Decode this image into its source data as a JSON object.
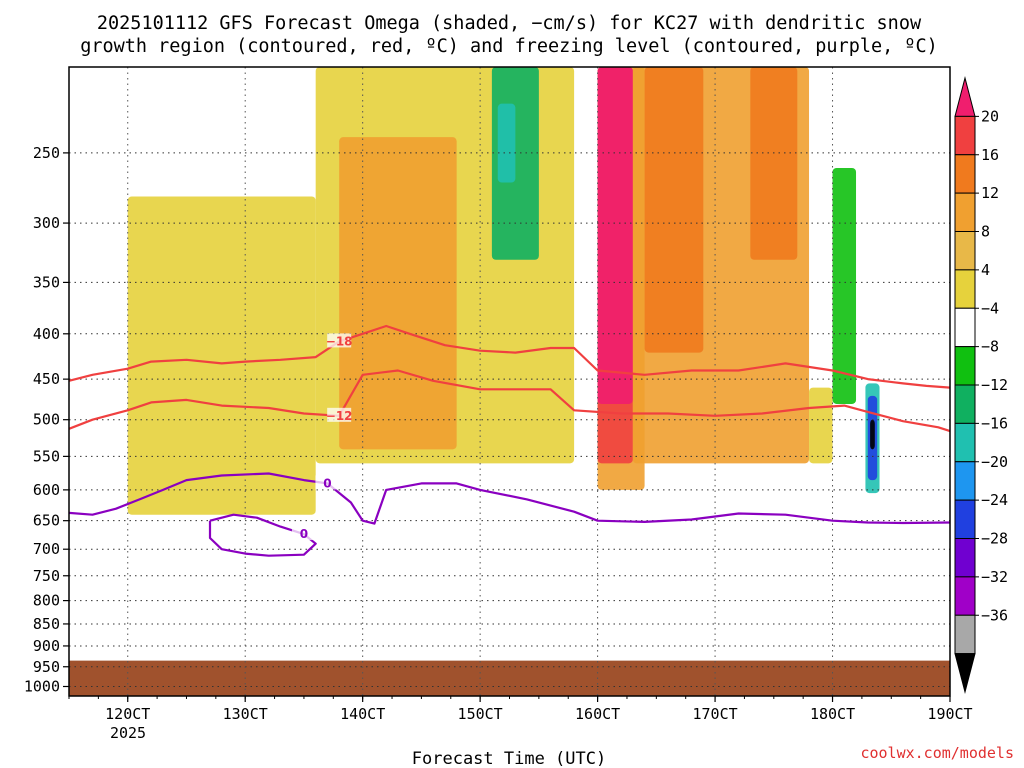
{
  "chart_data": {
    "type": "heatmap",
    "title": [
      "2025101112 GFS Forecast Omega (shaded, −cm/s) for KC27 with dendritic snow",
      "growth region (contoured, red, ºC) and freezing level (contoured, purple, ºC)"
    ],
    "xlabel": "Forecast Time (UTC)",
    "ylabel": "",
    "x_ticks": [
      "120CT",
      "130CT",
      "140CT",
      "150CT",
      "160CT",
      "170CT",
      "180CT",
      "190CT"
    ],
    "x_sub_label": "2025",
    "y_ticks": [
      "250",
      "300",
      "350",
      "400",
      "450",
      "500",
      "550",
      "600",
      "650",
      "700",
      "750",
      "800",
      "850",
      "900",
      "950",
      "1000"
    ],
    "y_tick_values": [
      250,
      300,
      350,
      400,
      450,
      500,
      550,
      600,
      650,
      700,
      750,
      800,
      850,
      900,
      950,
      1000
    ],
    "ylim_hpa": [
      200,
      1025
    ],
    "xlim_days": [
      11.5,
      19.0
    ],
    "ground_top_hpa": 935,
    "colorbar": {
      "labels": [
        "20",
        "16",
        "12",
        "8",
        "4",
        "−4",
        "−8",
        "−12",
        "−16",
        "−20",
        "−24",
        "−28",
        "−32",
        "−36"
      ],
      "colors": [
        "#f01e6e",
        "#f04040",
        "#f07a1e",
        "#f0a030",
        "#e8b848",
        "#e6d23c",
        "#ffffff",
        "#10c010",
        "#10b060",
        "#20c0b0",
        "#1e96f0",
        "#2040e0",
        "#7000d0",
        "#a000c8",
        "#a8a8a8",
        "#000000"
      ]
    },
    "contours": [
      {
        "label": "−18",
        "color": "#f04040",
        "points": [
          [
            11.5,
            452
          ],
          [
            11.7,
            445
          ],
          [
            12.0,
            438
          ],
          [
            12.2,
            430
          ],
          [
            12.5,
            428
          ],
          [
            12.8,
            432
          ],
          [
            13.0,
            430
          ],
          [
            13.3,
            428
          ],
          [
            13.6,
            425
          ],
          [
            13.8,
            408
          ],
          [
            14.0,
            400
          ],
          [
            14.2,
            392
          ],
          [
            14.4,
            400
          ],
          [
            14.7,
            412
          ],
          [
            15.0,
            418
          ],
          [
            15.3,
            420
          ],
          [
            15.6,
            415
          ],
          [
            15.8,
            415
          ],
          [
            16.0,
            440
          ],
          [
            16.4,
            445
          ],
          [
            16.8,
            440
          ],
          [
            17.2,
            440
          ],
          [
            17.6,
            432
          ],
          [
            18.0,
            440
          ],
          [
            18.3,
            450
          ],
          [
            18.6,
            455
          ],
          [
            18.8,
            458
          ],
          [
            19.0,
            460
          ]
        ]
      },
      {
        "label": "−12",
        "color": "#f04040",
        "points": [
          [
            11.5,
            512
          ],
          [
            11.7,
            500
          ],
          [
            12.0,
            488
          ],
          [
            12.2,
            478
          ],
          [
            12.5,
            475
          ],
          [
            12.8,
            482
          ],
          [
            13.2,
            485
          ],
          [
            13.5,
            492
          ],
          [
            13.8,
            495
          ],
          [
            14.0,
            445
          ],
          [
            14.3,
            440
          ],
          [
            14.6,
            452
          ],
          [
            15.0,
            462
          ],
          [
            15.4,
            462
          ],
          [
            15.6,
            462
          ],
          [
            15.8,
            488
          ],
          [
            16.2,
            492
          ],
          [
            16.6,
            492
          ],
          [
            17.0,
            495
          ],
          [
            17.4,
            492
          ],
          [
            17.8,
            485
          ],
          [
            18.1,
            482
          ],
          [
            18.3,
            490
          ],
          [
            18.6,
            502
          ],
          [
            18.9,
            510
          ],
          [
            19.0,
            515
          ]
        ]
      },
      {
        "label": "0",
        "color": "#8a00c0",
        "points": [
          [
            11.5,
            637
          ],
          [
            11.7,
            640
          ],
          [
            11.9,
            630
          ],
          [
            12.1,
            615
          ],
          [
            12.3,
            600
          ],
          [
            12.5,
            585
          ],
          [
            12.8,
            578
          ],
          [
            13.2,
            575
          ],
          [
            13.5,
            585
          ],
          [
            13.7,
            590
          ],
          [
            13.9,
            620
          ],
          [
            14.0,
            650
          ],
          [
            14.1,
            655
          ],
          [
            14.2,
            600
          ],
          [
            14.5,
            590
          ],
          [
            14.8,
            590
          ],
          [
            15.0,
            600
          ],
          [
            15.4,
            615
          ],
          [
            15.8,
            635
          ],
          [
            16.0,
            650
          ],
          [
            16.4,
            652
          ],
          [
            16.8,
            648
          ],
          [
            17.2,
            638
          ],
          [
            17.6,
            640
          ],
          [
            18.0,
            650
          ],
          [
            18.3,
            653
          ],
          [
            18.6,
            654
          ],
          [
            19.0,
            653
          ]
        ]
      },
      {
        "label": "0",
        "color": "#8a00c0",
        "points": [
          [
            12.7,
            650
          ],
          [
            12.9,
            640
          ],
          [
            13.1,
            645
          ],
          [
            13.3,
            660
          ],
          [
            13.5,
            673
          ],
          [
            13.6,
            690
          ],
          [
            13.5,
            710
          ],
          [
            13.2,
            712
          ],
          [
            13.0,
            708
          ],
          [
            12.8,
            700
          ],
          [
            12.7,
            680
          ],
          [
            12.7,
            650
          ]
        ]
      }
    ],
    "omega_regions": [
      {
        "class": "8",
        "x0": 16.0,
        "x1": 16.4,
        "p0": 200,
        "p1": 600
      },
      {
        "class": "16",
        "x0": 16.0,
        "x1": 16.3,
        "p0": 200,
        "p1": 560
      },
      {
        "class": "20",
        "x0": 16.0,
        "x1": 16.3,
        "p0": 200,
        "p1": 480
      },
      {
        "class": "8",
        "x0": 16.3,
        "x1": 17.8,
        "p0": 200,
        "p1": 560
      },
      {
        "class": "12",
        "x0": 16.4,
        "x1": 16.9,
        "p0": 200,
        "p1": 420
      },
      {
        "class": "12",
        "x0": 17.3,
        "x1": 17.7,
        "p0": 200,
        "p1": 330
      },
      {
        "class": "4",
        "x0": 13.6,
        "x1": 15.8,
        "p0": 200,
        "p1": 560
      },
      {
        "class": "8",
        "x0": 13.8,
        "x1": 14.8,
        "p0": 240,
        "p1": 540
      },
      {
        "class": "4",
        "x0": 12.0,
        "x1": 13.6,
        "p0": 280,
        "p1": 640
      },
      {
        "class": "-12",
        "x0": 15.1,
        "x1": 15.5,
        "p0": 200,
        "p1": 330
      },
      {
        "class": "-16",
        "x0": 15.15,
        "x1": 15.3,
        "p0": 220,
        "p1": 270
      },
      {
        "class": "-8",
        "x0": 18.0,
        "x1": 18.2,
        "p0": 260,
        "p1": 480
      },
      {
        "class": "-16",
        "x0": 18.28,
        "x1": 18.4,
        "p0": 455,
        "p1": 605
      },
      {
        "class": "-24",
        "x0": 18.3,
        "x1": 18.38,
        "p0": 470,
        "p1": 585
      },
      {
        "class": "-36",
        "x0": 18.32,
        "x1": 18.36,
        "p0": 500,
        "p1": 540
      },
      {
        "class": "4",
        "x0": 17.8,
        "x1": 18.0,
        "p0": 460,
        "p1": 560
      }
    ]
  },
  "credit": "coolwx.com/models"
}
